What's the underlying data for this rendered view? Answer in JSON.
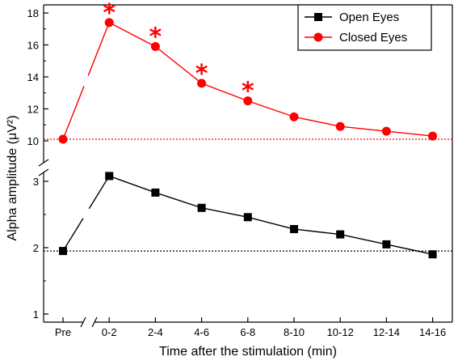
{
  "chart_data": {
    "type": "line",
    "xlabel": "Time after the stimulation (min)",
    "ylabel": "Alpha amplitude (μV²)",
    "categories": [
      "Pre",
      "0-2",
      "2-4",
      "4-6",
      "6-8",
      "8-10",
      "10-12",
      "12-14",
      "14-16"
    ],
    "axis_break": true,
    "upper_panel": {
      "ylim": [
        10,
        18
      ],
      "yticks": [
        "10",
        "12",
        "14",
        "16",
        "18"
      ],
      "baseline": 10.1,
      "baseline_color": "#ff0000",
      "series": [
        {
          "name": "Closed Eyes",
          "marker": "circle",
          "color": "#ff0000",
          "values": [
            10.1,
            17.4,
            15.9,
            13.6,
            12.5,
            11.5,
            10.9,
            10.6,
            10.3
          ],
          "significant": [
            false,
            true,
            true,
            true,
            true,
            false,
            false,
            false,
            false
          ],
          "significance_marker": "*"
        }
      ]
    },
    "lower_panel": {
      "ylim": [
        1,
        3.2
      ],
      "yticks": [
        "1",
        "2",
        "3"
      ],
      "baseline": 1.95,
      "baseline_color": "#000000",
      "series": [
        {
          "name": "Open Eyes",
          "marker": "square",
          "color": "#000000",
          "values": [
            1.95,
            3.08,
            2.83,
            2.6,
            2.46,
            2.28,
            2.2,
            2.05,
            1.9
          ]
        }
      ]
    },
    "legend": {
      "position": "top-right",
      "entries": [
        {
          "label": "Open Eyes",
          "marker": "square",
          "color": "#000000"
        },
        {
          "label": "Closed Eyes",
          "marker": "circle",
          "color": "#ff0000"
        }
      ]
    }
  }
}
